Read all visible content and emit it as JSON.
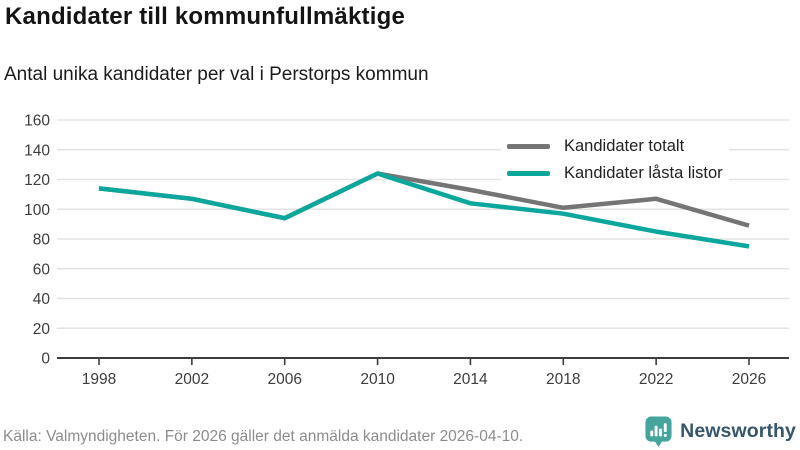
{
  "header": {
    "title": "Kandidater till kommunfullmäktige",
    "subtitle": "Antal unika kandidater per val i Perstorps kommun"
  },
  "chart_data": {
    "type": "line",
    "x": [
      1998,
      2002,
      2006,
      2010,
      2014,
      2018,
      2022,
      2026
    ],
    "series": [
      {
        "name": "Kandidater totalt",
        "color": "#757575",
        "values": [
          114,
          107,
          94,
          124,
          113,
          101,
          107,
          89
        ]
      },
      {
        "name": "Kandidater låsta listor",
        "color": "#0ba79c",
        "values": [
          114,
          107,
          94,
          124,
          104,
          97,
          85,
          75
        ]
      }
    ],
    "title": "Kandidater till kommunfullmäktige",
    "subtitle": "Antal unika kandidater per val i Perstorps kommun",
    "xlabel": "",
    "ylabel": "",
    "ylim": [
      0,
      160
    ],
    "yticks": [
      0,
      20,
      40,
      60,
      80,
      100,
      120,
      140,
      160
    ],
    "grid": "horizontal",
    "legend_position": "top-right-inside"
  },
  "footer": {
    "source": "Källa: Valmyndigheten. För 2026 gäller det anmälda kandidater 2026-04-10.",
    "brand": "Newsworthy"
  },
  "icons": {
    "brand_icon": "newsworthy-bar-chart-bubble"
  },
  "colors": {
    "series_total": "#757575",
    "series_locked": "#0ba79c",
    "brand_teal": "#45a59d",
    "brand_navy": "#35566b",
    "gridline": "#e3e3e3",
    "axis": "#3d3d3d",
    "tick_text": "#3d3d3d",
    "title_text": "#141414",
    "muted_text": "#8c8c8c",
    "background": "#ffffff"
  }
}
